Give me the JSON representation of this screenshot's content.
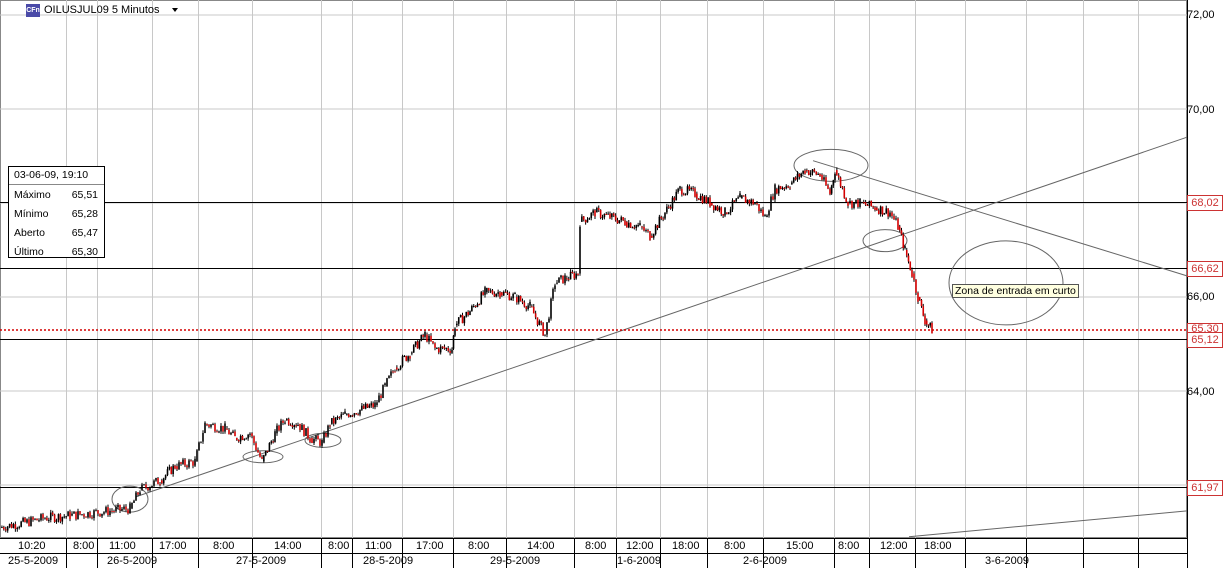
{
  "header": {
    "logo_text": "CFn",
    "symbol_title": "OILUSJUL09 5 Minutos"
  },
  "info_box": {
    "datetime": "03-06-09, 19:10",
    "rows": [
      {
        "label": "Máximo",
        "value": "65,51"
      },
      {
        "label": "Mínimo",
        "value": "65,28"
      },
      {
        "label": "Aberto",
        "value": "65,47"
      },
      {
        "label": "Último",
        "value": "65,30"
      }
    ]
  },
  "annotation": {
    "label": "Zona de entrada em curto"
  },
  "chart_data": {
    "type": "candlestick",
    "y_axis_ticks": [
      "72,00",
      "70,00",
      "68,00",
      "66,00",
      "64,00"
    ],
    "ylim": [
      60.8,
      72.15
    ],
    "grid": true,
    "horizontal_levels": [
      {
        "label": "68,02",
        "value": 68.02
      },
      {
        "label": "66,62",
        "value": 66.62
      },
      {
        "label": "65,12",
        "value": 65.12
      },
      {
        "label": "61,97",
        "value": 61.97
      }
    ],
    "current_price": {
      "label": "65,30",
      "value": 65.3,
      "color": "#d40000"
    },
    "x_time_labels": [
      "10:20",
      "8:00",
      "11:00",
      "17:00",
      "8:00",
      "14:00",
      "8:00",
      "11:00",
      "17:00",
      "8:00",
      "14:00",
      "8:00",
      "12:00",
      "18:00",
      "8:00",
      "15:00",
      "8:00",
      "12:00",
      "18:00"
    ],
    "x_date_labels": [
      "25-5-2009",
      "26-5-2009",
      "27-5-2009",
      "28-5-2009",
      "29-5-2009",
      "1-6-2009",
      "2-6-2009",
      "3-6-2009"
    ],
    "price_path": [
      [
        0,
        61.1
      ],
      [
        25,
        61.2
      ],
      [
        45,
        61.3
      ],
      [
        70,
        61.35
      ],
      [
        130,
        61.5
      ],
      [
        140,
        61.9
      ],
      [
        160,
        62.1
      ],
      [
        175,
        62.4
      ],
      [
        195,
        62.5
      ],
      [
        205,
        63.3
      ],
      [
        225,
        63.2
      ],
      [
        235,
        63.0
      ],
      [
        250,
        63.1
      ],
      [
        262,
        62.5
      ],
      [
        275,
        63.1
      ],
      [
        285,
        63.4
      ],
      [
        298,
        63.3
      ],
      [
        310,
        63.0
      ],
      [
        322,
        62.9
      ],
      [
        330,
        63.3
      ],
      [
        345,
        63.5
      ],
      [
        360,
        63.6
      ],
      [
        375,
        63.7
      ],
      [
        385,
        64.1
      ],
      [
        395,
        64.5
      ],
      [
        410,
        64.8
      ],
      [
        425,
        65.2
      ],
      [
        435,
        64.9
      ],
      [
        452,
        64.9
      ],
      [
        455,
        65.4
      ],
      [
        470,
        65.7
      ],
      [
        485,
        66.1
      ],
      [
        500,
        66.1
      ],
      [
        515,
        66.0
      ],
      [
        530,
        65.8
      ],
      [
        545,
        65.2
      ],
      [
        555,
        66.3
      ],
      [
        565,
        66.4
      ],
      [
        578,
        66.5
      ],
      [
        580,
        67.6
      ],
      [
        595,
        67.8
      ],
      [
        610,
        67.7
      ],
      [
        625,
        67.6
      ],
      [
        640,
        67.5
      ],
      [
        650,
        67.3
      ],
      [
        665,
        67.8
      ],
      [
        680,
        68.3
      ],
      [
        695,
        68.2
      ],
      [
        710,
        68.0
      ],
      [
        725,
        67.8
      ],
      [
        740,
        68.1
      ],
      [
        755,
        68.0
      ],
      [
        765,
        67.7
      ],
      [
        775,
        68.3
      ],
      [
        790,
        68.4
      ],
      [
        805,
        68.7
      ],
      [
        820,
        68.6
      ],
      [
        830,
        68.2
      ],
      [
        835,
        68.7
      ],
      [
        848,
        68.0
      ],
      [
        860,
        68.0
      ],
      [
        875,
        67.9
      ],
      [
        890,
        67.8
      ],
      [
        898,
        67.5
      ],
      [
        905,
        67.0
      ],
      [
        912,
        66.5
      ],
      [
        918,
        66.0
      ],
      [
        925,
        65.5
      ],
      [
        932,
        65.3
      ]
    ],
    "trendlines": [
      {
        "from": [
          "26-5-2009 11:00",
          61.75
        ],
        "to": [
          "3-6-2009 19:10",
          69.4
        ]
      },
      {
        "from": [
          "2-6-2009 15:00",
          68.9
        ],
        "to": [
          "3-6-2009 19:10",
          66.45
        ]
      },
      {
        "from": [
          "3-6-2009 12:00",
          60.9
        ],
        "to": [
          "3-6-2009 19:10",
          61.45
        ]
      }
    ],
    "ellipses": [
      {
        "center": [
          "26-5-2009 11:00",
          61.7
        ]
      },
      {
        "center": [
          "27-5-2009 8:00",
          62.6
        ]
      },
      {
        "center": [
          "28-5-2009 8:00",
          62.95
        ]
      },
      {
        "center": [
          "2-6-2009 15:00",
          68.8
        ]
      },
      {
        "center": [
          "3-6-2009 12:00",
          67.2
        ]
      },
      {
        "center": [
          "3-6-2009 18:00",
          66.3
        ]
      }
    ]
  }
}
